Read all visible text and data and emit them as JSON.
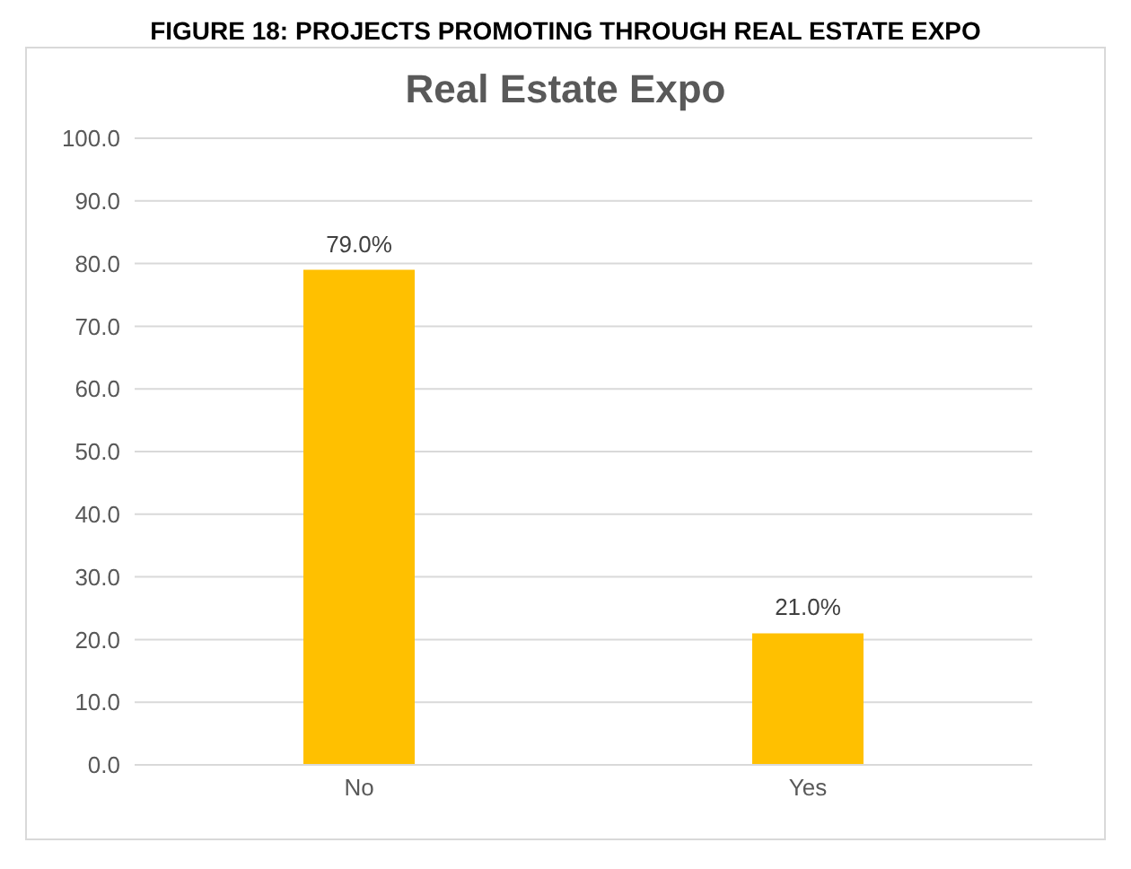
{
  "chart_data": {
    "type": "bar",
    "title": "Real Estate Expo",
    "annotations": [
      "FIGURE 18: PROJECTS PROMOTING THROUGH REAL ESTATE EXPO"
    ],
    "categories": [
      "No",
      "Yes"
    ],
    "values": [
      79,
      21
    ],
    "color": "#ffc000",
    "value_labels": [
      "79.0%",
      "21.0%"
    ],
    "ylim": [
      0,
      100
    ],
    "yticks": [
      {
        "value": 0,
        "label": "0.0"
      },
      {
        "value": 10,
        "label": "10.0"
      },
      {
        "value": 20,
        "label": "20.0"
      },
      {
        "value": 30,
        "label": "30.0"
      },
      {
        "value": 40,
        "label": "40.0"
      },
      {
        "value": 50,
        "label": "50.0"
      },
      {
        "value": 60,
        "label": "60.0"
      },
      {
        "value": 70,
        "label": "70.0"
      },
      {
        "value": 80,
        "label": "80.0"
      },
      {
        "value": 90,
        "label": "90.0"
      },
      {
        "value": 100,
        "label": "100.0"
      }
    ],
    "grid": "y"
  }
}
